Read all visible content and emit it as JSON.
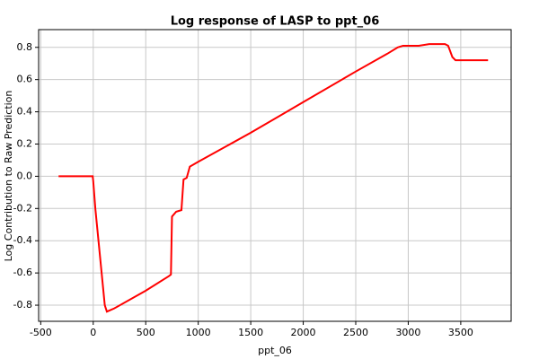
{
  "chart_data": {
    "type": "line",
    "title": "Log response of LASP to ppt_06",
    "x_label": "ppt_06",
    "y_label": "Log Contribution to Raw Prediction",
    "x": [
      -330,
      -5,
      0,
      20,
      50,
      80,
      110,
      130,
      200,
      500,
      720,
      740,
      750,
      790,
      840,
      860,
      890,
      920,
      1000,
      1500,
      2000,
      2500,
      2800,
      2900,
      2950,
      3100,
      3200,
      3350,
      3380,
      3420,
      3450,
      3760
    ],
    "series": [
      {
        "name": "LASP",
        "color": "#ff0000",
        "values": [
          0,
          0,
          -0.03,
          -0.2,
          -0.4,
          -0.6,
          -0.8,
          -0.84,
          -0.82,
          -0.71,
          -0.62,
          -0.61,
          -0.25,
          -0.22,
          -0.21,
          -0.02,
          -0.01,
          0.06,
          0.09,
          0.27,
          0.46,
          0.65,
          0.76,
          0.8,
          0.81,
          0.81,
          0.82,
          0.82,
          0.81,
          0.74,
          0.72,
          0.72
        ]
      }
    ],
    "xlim": [
      -520,
      3980
    ],
    "ylim": [
      -0.9,
      0.91
    ],
    "xticks": [
      -500,
      0,
      500,
      1000,
      1500,
      2000,
      2500,
      3000,
      3500
    ],
    "yticks": [
      -0.8,
      -0.6,
      -0.4,
      -0.2,
      {
        "value": 0,
        "label": "0.0"
      },
      0.2,
      0.4,
      0.6,
      0.8
    ],
    "grid": true
  }
}
